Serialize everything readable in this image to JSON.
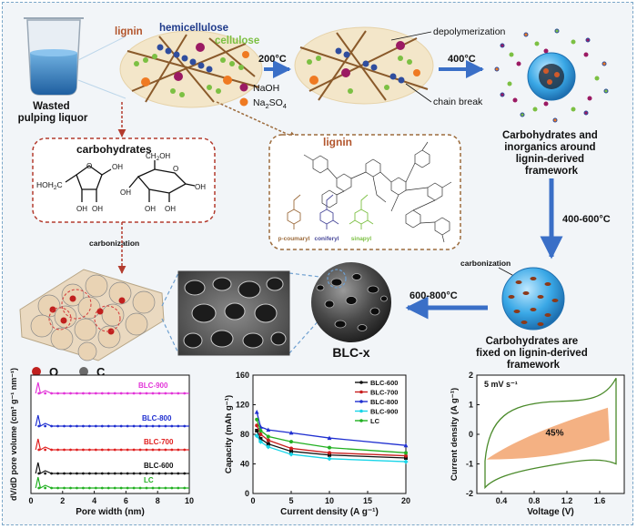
{
  "colors": {
    "arrow_blue": "#3a6fc7",
    "red_dashed": "#b33b2e",
    "brown_dashed": "#9c6b3c",
    "lignin_text": "#b2552c",
    "hemicellulose_text": "#1f3a8a",
    "cellulose_text": "#7cc043",
    "naoh_dot": "#9b1a63",
    "na2so4_dot": "#ef7a22",
    "blc900": "#e234d8",
    "blc800": "#1f2fd0",
    "blc700": "#e02020",
    "blc600": "#111111",
    "lc": "#22b022",
    "capacity_cyan": "#19d5e8",
    "cv_fill": "#f4b183",
    "cv_outline": "#4a8a2a"
  },
  "top": {
    "beaker_label": "Wasted\npulping liquor",
    "lignin": "lignin",
    "hemicellulose": "hemicellulose",
    "cellulose": "cellulose",
    "naoh": "NaOH",
    "na2so4": "Na",
    "na2so4_sub": "2",
    "na2so4_tail": "SO",
    "na2so4_sub2": "4",
    "step1_temp": "200°C",
    "depolymerization": "depolymerization",
    "chain_break": "chain break",
    "step2_temp": "400°C",
    "right_caption": [
      "Carbohydrates and",
      "inorganics around",
      "lignin-derived",
      "framework"
    ]
  },
  "middle": {
    "carbohydrates_title": "carbohydrates",
    "furanose_labels": [
      "HOH",
      "2",
      "C",
      "O",
      "OH",
      "OH",
      "OH"
    ],
    "pyranose_labels": [
      "CH",
      "2",
      "OH",
      "O",
      "OH",
      "OH",
      "OH",
      "OH"
    ],
    "lignin_title": "lignin",
    "monomers": [
      "p-coumaryl",
      "coniferyl",
      "sinapyl"
    ],
    "step3_temp": "400-600°C",
    "carbonization_left": "carbonization",
    "carbonization_right": "carbonization"
  },
  "bottom_row": {
    "legend_o": "O",
    "legend_c": "C",
    "blc_label": "BLC-x",
    "step4_temp": "600-800°C",
    "fixed_caption": [
      "Carbohydrates are",
      "fixed on lignin-derived",
      "framework"
    ]
  },
  "chart_data": [
    {
      "type": "line",
      "title": "",
      "xlabel": "Pore width (nm)",
      "ylabel": "dV/dD pore volume (cm³ g⁻¹ nm⁻¹)",
      "xlim": [
        0,
        10
      ],
      "xticks": [
        0,
        2,
        4,
        6,
        8,
        10
      ],
      "y_ticks_shown": false,
      "series": [
        {
          "name": "BLC-900",
          "color": "#e234d8"
        },
        {
          "name": "BLC-800",
          "color": "#1f2fd0"
        },
        {
          "name": "BLC-700",
          "color": "#e02020"
        },
        {
          "name": "BLC-600",
          "color": "#111111"
        },
        {
          "name": "LC",
          "color": "#22b022"
        }
      ]
    },
    {
      "type": "line",
      "xlabel": "Current density (A g⁻¹)",
      "ylabel": "Capacity (mAh g⁻¹)",
      "xlim": [
        0,
        20
      ],
      "ylim": [
        0,
        160
      ],
      "xticks": [
        0,
        5,
        10,
        15,
        20
      ],
      "yticks": [
        0,
        40,
        80,
        120,
        160
      ],
      "x": [
        0.5,
        1,
        2,
        5,
        10,
        20
      ],
      "series": [
        {
          "name": "BLC-600",
          "color": "#111111",
          "values": [
            85,
            74,
            67,
            57,
            52,
            48
          ]
        },
        {
          "name": "BLC-700",
          "color": "#c81e1e",
          "values": [
            92,
            80,
            72,
            61,
            55,
            51
          ]
        },
        {
          "name": "BLC-800",
          "color": "#1f2fd0",
          "values": [
            110,
            90,
            86,
            82,
            75,
            65
          ]
        },
        {
          "name": "BLC-900",
          "color": "#19d5e8",
          "values": [
            78,
            70,
            63,
            53,
            47,
            43
          ]
        },
        {
          "name": "LC",
          "color": "#22b022",
          "values": [
            100,
            85,
            77,
            70,
            62,
            55
          ]
        }
      ]
    },
    {
      "type": "line",
      "xlabel": "Voltage (V)",
      "ylabel": "Current density (A g⁻¹)",
      "xlim": [
        0.1,
        1.9
      ],
      "ylim": [
        -2,
        2
      ],
      "xticks": [
        0.4,
        0.8,
        1.2,
        1.6
      ],
      "yticks": [
        -2,
        -1,
        0,
        1,
        2
      ],
      "scan_rate_label": "5 mV s⁻¹",
      "annotation": "45%"
    }
  ]
}
